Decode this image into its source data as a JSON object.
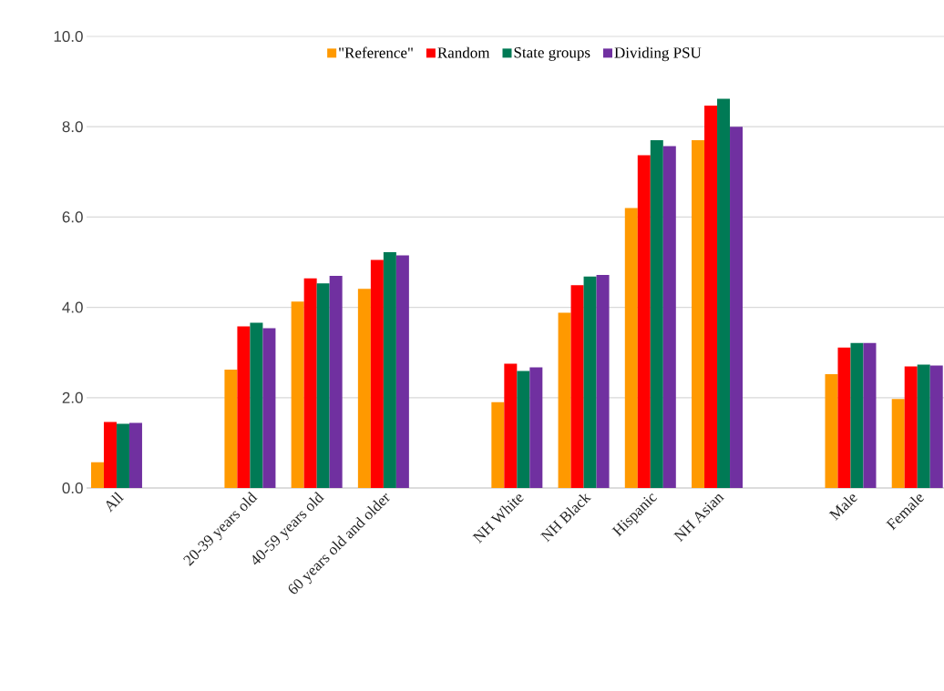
{
  "chart_data": {
    "type": "bar",
    "categories": [
      "All",
      null,
      "20-39 years old",
      "40-59 years old",
      "60 years old and older",
      null,
      "NH White",
      "NH Black",
      "Hispanic",
      "NH Asian",
      null,
      "Male",
      "Female"
    ],
    "series": [
      {
        "name": "\"Reference\"",
        "color": "#ff9900",
        "values": [
          0.57,
          null,
          2.62,
          4.13,
          4.41,
          null,
          1.9,
          3.88,
          6.2,
          7.7,
          null,
          2.52,
          1.97
        ]
      },
      {
        "name": "Random",
        "color": "#ff0000",
        "values": [
          1.46,
          null,
          3.58,
          4.64,
          5.05,
          null,
          2.75,
          4.49,
          7.37,
          8.47,
          null,
          3.11,
          2.69
        ]
      },
      {
        "name": "State groups",
        "color": "#007a55",
        "values": [
          1.42,
          null,
          3.66,
          4.53,
          5.22,
          null,
          2.59,
          4.68,
          7.7,
          8.62,
          null,
          3.21,
          2.73
        ]
      },
      {
        "name": "Dividing PSU",
        "color": "#7030a0",
        "values": [
          1.44,
          null,
          3.54,
          4.7,
          5.15,
          null,
          2.67,
          4.72,
          7.57,
          8.0,
          null,
          3.21,
          2.71
        ]
      }
    ],
    "ylim": [
      0,
      10
    ],
    "yticks": [
      {
        "value": 0,
        "label": "0.0"
      },
      {
        "value": 2,
        "label": "2.0"
      },
      {
        "value": 4,
        "label": "4.0"
      },
      {
        "value": 6,
        "label": "6.0"
      },
      {
        "value": 8,
        "label": "8.0"
      },
      {
        "value": 10,
        "label": "10.0"
      }
    ],
    "grid": "y",
    "legend": "top"
  }
}
